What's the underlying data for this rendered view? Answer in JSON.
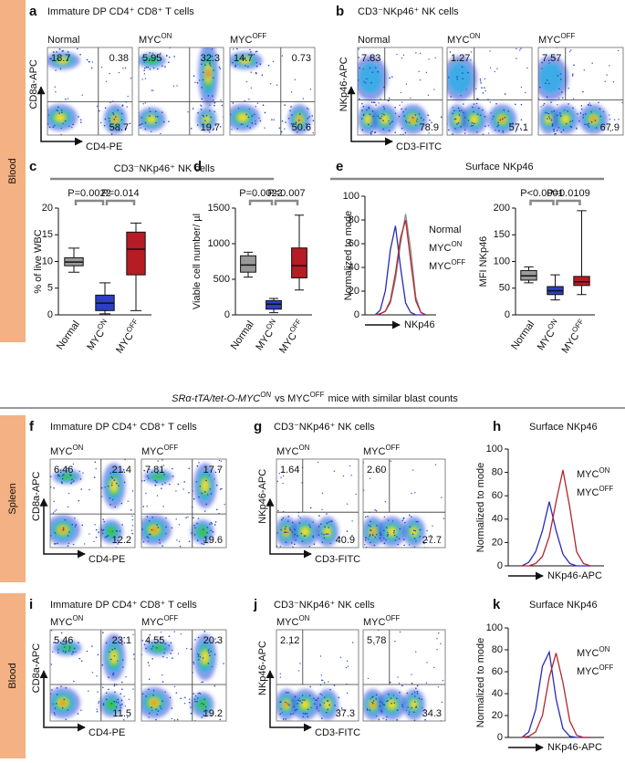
{
  "side_labels": [
    "Blood",
    "Spleen",
    "Blood"
  ],
  "caption": {
    "italic": "SRα-tTA/tet-O-MYC",
    "italic_sup": "ON",
    "text": "vs MYC",
    "sup": "OFF",
    "rest": "mice with similar blast counts"
  },
  "cd_title": "CD3⁻NKp46⁺ NK cells",
  "panels": {
    "a": {
      "letter": "a",
      "title": "Immature DP CD4⁺ CD8⁺ T cells",
      "y_label": "CD8a-APC",
      "x_label": "CD4-PE",
      "plots": [
        {
          "label": {
            "text": "Normal"
          },
          "color": "#8c8c8c",
          "quadrants": {
            "ul": 18.7,
            "ur": 0.38,
            "lr": 58.7
          }
        },
        {
          "label": {
            "text": "MYC",
            "sup": "ON"
          },
          "color": "#2a2ab8",
          "quadrants": {
            "ul": 5.95,
            "ur": 32.3,
            "lr": 19.7
          }
        },
        {
          "label": {
            "text": "MYC",
            "sup": "OFF"
          },
          "color": "#b3262c",
          "quadrants": {
            "ul": 14.7,
            "ur": 0.73,
            "lr": 50.6
          }
        }
      ]
    },
    "b": {
      "letter": "b",
      "title": "CD3⁻NKp46⁺ NK cells",
      "y_label": "NKp46-APC",
      "x_label": "CD3-FITC",
      "plots": [
        {
          "label": {
            "text": "Normal"
          },
          "color": "#8c8c8c",
          "quadrants": {
            "ul": 7.83,
            "lr": 78.9
          }
        },
        {
          "label": {
            "text": "MYC",
            "sup": "ON"
          },
          "color": "#2a2ab8",
          "quadrants": {
            "ul": 1.27,
            "lr": 57.1
          }
        },
        {
          "label": {
            "text": "MYC",
            "sup": "OFF"
          },
          "color": "#b3262c",
          "quadrants": {
            "ul": 7.57,
            "lr": 67.9
          }
        }
      ]
    },
    "c": {
      "letter": "c",
      "y_label": "% of live WBC",
      "ylim": [
        0,
        20
      ],
      "yticks": [
        0,
        5,
        10,
        15,
        20
      ],
      "categories": [
        {
          "text": "Normal"
        },
        {
          "text": "MYC",
          "sup": "ON"
        },
        {
          "text": "MYC",
          "sup": "OFF"
        }
      ],
      "label_colors": [
        "#8c8c8c",
        "#2a2ab8",
        "#b3262c"
      ],
      "colors": [
        "#9a9a9a",
        "#2b3fc0",
        "#b51c24"
      ],
      "boxes": [
        {
          "min": 8,
          "q1": 9.2,
          "median": 9.9,
          "q3": 10.7,
          "max": 12.5
        },
        {
          "min": 0.2,
          "q1": 0.8,
          "median": 2.2,
          "q3": 3.7,
          "max": 6
        },
        {
          "min": 0.8,
          "q1": 7.5,
          "median": 12.3,
          "q3": 15.5,
          "max": 17.2
        }
      ],
      "p_values": [
        "P=0.0022",
        "P=0.014"
      ]
    },
    "d": {
      "letter": "d",
      "y_label": "Viable cell number/ µl",
      "ylim": [
        0,
        1500
      ],
      "yticks": [
        0,
        500,
        1000,
        1500
      ],
      "categories": [
        {
          "text": "Normal"
        },
        {
          "text": "MYC",
          "sup": "ON"
        },
        {
          "text": "MYC",
          "sup": "OFF"
        }
      ],
      "label_colors": [
        "#8c8c8c",
        "#2a2ab8",
        "#b3262c"
      ],
      "colors": [
        "#9a9a9a",
        "#2b3fc0",
        "#b51c24"
      ],
      "boxes": [
        {
          "min": 530,
          "q1": 600,
          "median": 700,
          "q3": 830,
          "max": 880
        },
        {
          "min": 30,
          "q1": 80,
          "median": 150,
          "q3": 200,
          "max": 230
        },
        {
          "min": 350,
          "q1": 520,
          "median": 690,
          "q3": 940,
          "max": 1400
        }
      ],
      "p_values": [
        "P=0.0022",
        "P=0.007"
      ]
    },
    "e": {
      "letter": "e",
      "title": "Surface NKp46",
      "hist": {
        "y_label": "Normalized to mode",
        "x_label": "NKp46",
        "ylim": [
          0,
          100
        ],
        "yticks": [
          0,
          20,
          40,
          60,
          80,
          100
        ],
        "xlim": [
          20,
          90
        ],
        "x": [
          30,
          35,
          40,
          45,
          50,
          55,
          60,
          65,
          70,
          75,
          80
        ],
        "series": [
          {
            "name": {
              "text": "Normal"
            },
            "color": "#8c8c8c",
            "values": [
              0,
              1,
              3,
              10,
              30,
              60,
              85,
              55,
              15,
              2,
              0
            ]
          },
          {
            "name": {
              "text": "MYC",
              "sup": "ON"
            },
            "color": "#2a2ab8",
            "values": [
              0,
              4,
              20,
              55,
              75,
              40,
              10,
              2,
              0,
              0,
              0
            ]
          },
          {
            "name": {
              "text": "MYC",
              "sup": "OFF"
            },
            "color": "#b3262c",
            "values": [
              0,
              1,
              3,
              12,
              35,
              65,
              80,
              45,
              12,
              2,
              0
            ]
          }
        ]
      },
      "mfi": {
        "y_label": "MFI NKp46",
        "ylim": [
          0,
          200
        ],
        "yticks": [
          0,
          50,
          100,
          150,
          200
        ],
        "categories": [
          {
            "text": "Normal"
          },
          {
            "text": "MYC",
            "sup": "ON"
          },
          {
            "text": "MYC",
            "sup": "OFF"
          }
        ],
        "label_colors": [
          "#8c8c8c",
          "#2a2ab8",
          "#b3262c"
        ],
        "colors": [
          "#9a9a9a",
          "#2b3fc0",
          "#b51c24"
        ],
        "boxes": [
          {
            "min": 60,
            "q1": 65,
            "median": 73,
            "q3": 83,
            "max": 90
          },
          {
            "min": 28,
            "q1": 38,
            "median": 45,
            "q3": 53,
            "max": 75
          },
          {
            "min": 38,
            "q1": 55,
            "median": 62,
            "q3": 72,
            "max": 195
          }
        ],
        "p_values": [
          "P<0.0001",
          "P=0.0109"
        ]
      }
    },
    "f": {
      "letter": "f",
      "title": "Immature DP CD4⁺ CD8⁺ T cells",
      "y_label": "CD8a-APC",
      "x_label": "CD4-PE",
      "plots": [
        {
          "label": {
            "text": "MYC",
            "sup": "ON"
          },
          "color": "#2a2ab8",
          "quadrants": {
            "ul": 6.46,
            "ur": 21.4,
            "lr": 12.2
          }
        },
        {
          "label": {
            "text": "MYC",
            "sup": "OFF"
          },
          "color": "#b3262c",
          "quadrants": {
            "ul": 7.81,
            "ur": 17.7,
            "lr": 19.6
          }
        }
      ]
    },
    "g": {
      "letter": "g",
      "title": "CD3⁻NKp46⁺ NK cells",
      "y_label": "NKp46-APC",
      "x_label": "CD3-FITC",
      "plots": [
        {
          "label": {
            "text": "MYC",
            "sup": "ON"
          },
          "color": "#2a2ab8",
          "quadrants": {
            "ul": 1.64,
            "lr": 40.9
          }
        },
        {
          "label": {
            "text": "MYC",
            "sup": "OFF"
          },
          "color": "#b3262c",
          "quadrants": {
            "ul": {
              "value": 2.6,
              "label": "2.60"
            },
            "lr": 27.7
          }
        }
      ]
    },
    "h": {
      "letter": "h",
      "title": "Surface NKp46",
      "hist": {
        "y_label": "Normalized to mode",
        "x_label": "NKp46-APC",
        "ylim": [
          0,
          100
        ],
        "yticks": [
          0,
          20,
          40,
          60,
          80,
          100
        ],
        "xlim": [
          20,
          90
        ],
        "x": [
          30,
          35,
          40,
          45,
          50,
          55,
          60,
          65,
          70,
          75,
          80
        ],
        "series": [
          {
            "name": {
              "text": "MYC",
              "sup": "ON"
            },
            "color": "#2a2ab8",
            "values": [
              0,
              3,
              12,
              30,
              55,
              30,
              10,
              2,
              0,
              0,
              0
            ]
          },
          {
            "name": {
              "text": "MYC",
              "sup": "OFF"
            },
            "color": "#b3262c",
            "values": [
              0,
              0,
              2,
              8,
              25,
              55,
              82,
              50,
              12,
              2,
              0
            ]
          }
        ]
      }
    },
    "i": {
      "letter": "i",
      "title": "Immature DP CD4⁺ CD8⁺ T cells",
      "y_label": "CD8a-APC",
      "x_label": "CD4-PE",
      "plots": [
        {
          "label": {
            "text": "MYC",
            "sup": "ON"
          },
          "color": "#2a2ab8",
          "quadrants": {
            "ul": 5.46,
            "ur": 23.1,
            "lr": 11.5
          }
        },
        {
          "label": {
            "text": "MYC",
            "sup": "OFF"
          },
          "color": "#b3262c",
          "quadrants": {
            "ul": 4.55,
            "ur": 20.3,
            "lr": 19.2
          }
        }
      ]
    },
    "j": {
      "letter": "j",
      "title": "CD3⁻NKp46⁺ NK cells",
      "y_label": "NKp46-APC",
      "x_label": "CD3-FITC",
      "plots": [
        {
          "label": {
            "text": "MYC",
            "sup": "ON"
          },
          "color": "#2a2ab8",
          "quadrants": {
            "ul": 2.12,
            "lr": 37.3
          }
        },
        {
          "label": {
            "text": "MYC",
            "sup": "OFF"
          },
          "color": "#b3262c",
          "quadrants": {
            "ul": 5.78,
            "lr": 34.3
          }
        }
      ]
    },
    "k": {
      "letter": "k",
      "title": "Surface NKp46",
      "hist": {
        "y_label": "Normalized to mode",
        "x_label": "NKp46-APC",
        "ylim": [
          0,
          100
        ],
        "yticks": [
          0,
          20,
          40,
          60,
          80,
          100
        ],
        "xlim": [
          20,
          90
        ],
        "x": [
          30,
          35,
          40,
          45,
          50,
          55,
          60,
          65,
          70,
          75,
          80
        ],
        "series": [
          {
            "name": {
              "text": "MYC",
              "sup": "ON"
            },
            "color": "#2a2ab8",
            "values": [
              0,
              5,
              25,
              65,
              78,
              35,
              8,
              1,
              0,
              0,
              0
            ]
          },
          {
            "name": {
              "text": "MYC",
              "sup": "OFF"
            },
            "color": "#b3262c",
            "values": [
              0,
              1,
              5,
              20,
              55,
              77,
              50,
              15,
              2,
              0,
              0
            ]
          }
        ]
      }
    }
  }
}
